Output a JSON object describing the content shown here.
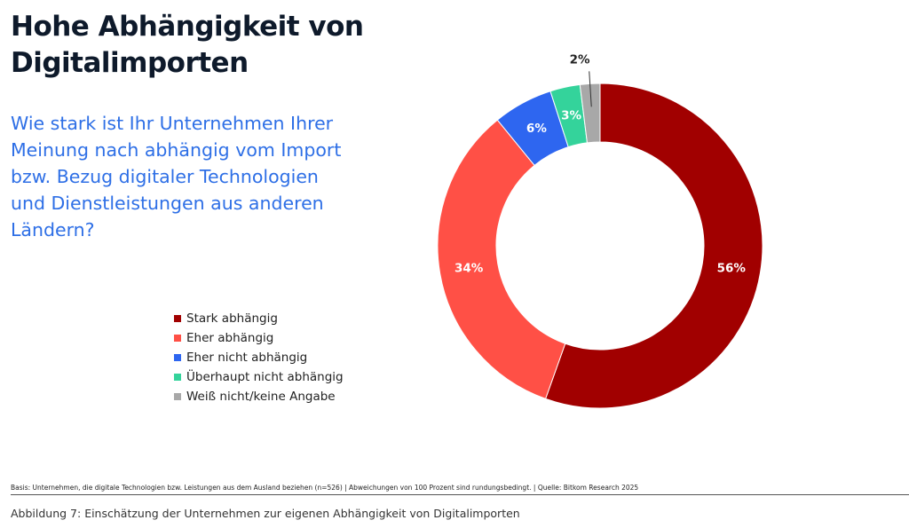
{
  "title": {
    "line1": "Hohe Abhängigkeit von",
    "line2": "Digitalimporten"
  },
  "question": {
    "lines": [
      "Wie stark ist Ihr Unternehmen Ihrer",
      "Meinung nach abhängig vom Import",
      "bzw. Bezug digitaler Technologien",
      "und Dienstleistungen aus anderen",
      "Ländern?"
    ]
  },
  "chart_data": {
    "type": "pie",
    "donut": true,
    "categories": [
      "Stark abhängig",
      "Eher abhängig",
      "Eher nicht abhängig",
      "Überhaupt nicht abhängig",
      "Weiß nicht/keine Angabe"
    ],
    "values": [
      56,
      34,
      6,
      3,
      2
    ],
    "labels": [
      "56%",
      "34%",
      "6%",
      "3%",
      "2%"
    ],
    "colors": [
      "#a10000",
      "#ff5046",
      "#2e66f0",
      "#34d39b",
      "#a8a8a8"
    ],
    "legend_placement": "left"
  },
  "footer": {
    "basis": "Basis: Unternehmen, die digitale Technologien bzw. Leistungen aus dem Ausland beziehen (n=526) | Abweichungen von 100 Prozent sind rundungsbedingt. | Quelle: Bitkom Research 2025",
    "caption": "Abbildung 7: Einschätzung der Unternehmen zur eigenen Abhängigkeit von Digitalimporten"
  }
}
